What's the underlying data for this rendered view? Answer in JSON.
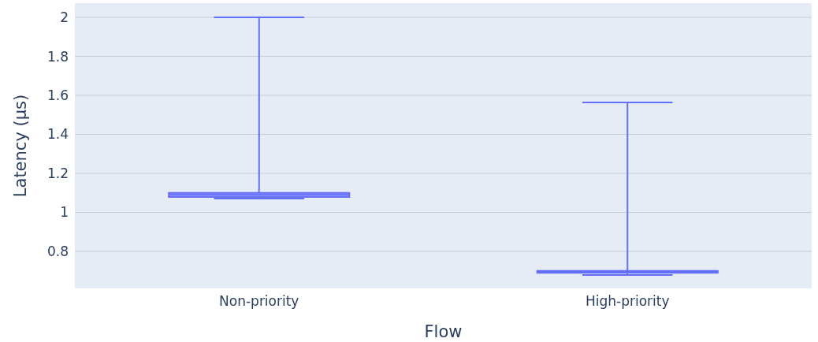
{
  "chart_data": {
    "type": "box",
    "xlabel": "Flow",
    "ylabel": "Latency (μs)",
    "categories": [
      "Non-priority",
      "High-priority"
    ],
    "ylim": [
      0.61,
      2.073
    ],
    "yticks": [
      0.8,
      1,
      1.2,
      1.4,
      1.6,
      1.8,
      2
    ],
    "grid": "y",
    "color": "#636efa",
    "boxes": [
      {
        "low": 1.071,
        "q1": 1.079,
        "median": 1.09,
        "q3": 1.1,
        "high": 2
      },
      {
        "low": 0.679,
        "q1": 0.69,
        "median": 0.695,
        "q3": 0.7,
        "high": 1.564
      }
    ]
  }
}
